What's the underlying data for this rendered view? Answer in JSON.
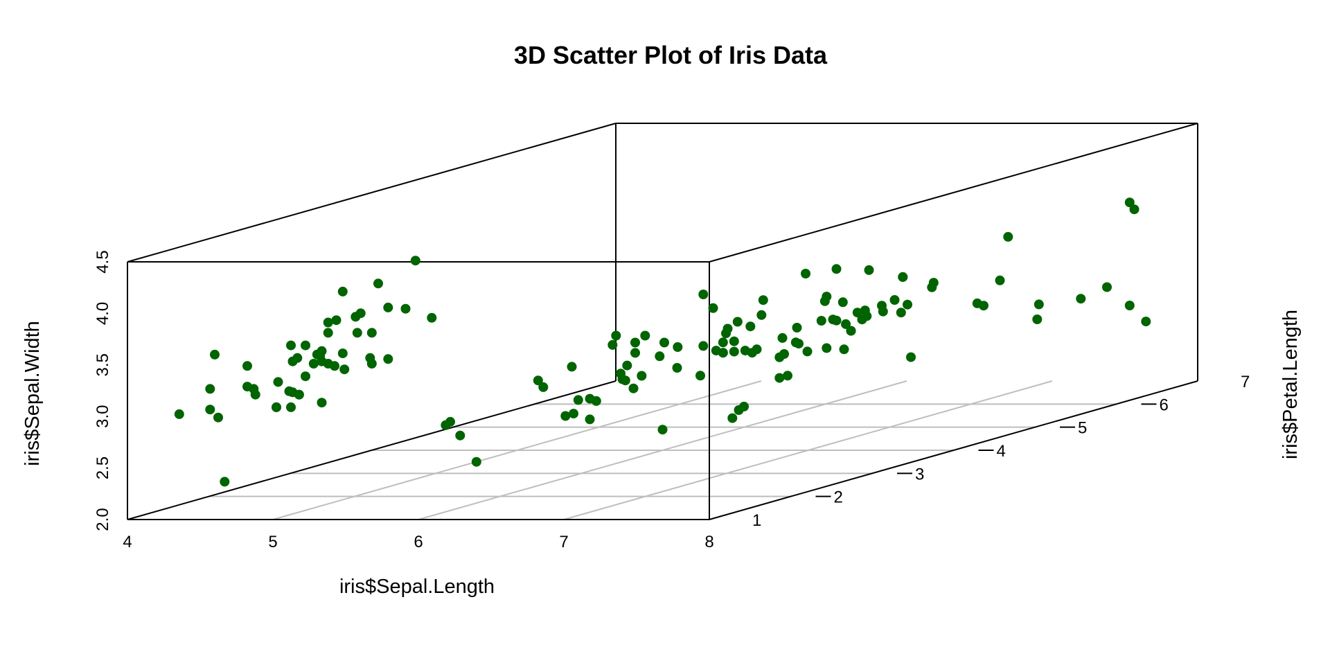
{
  "chart_data": {
    "type": "scatter",
    "title": "3D Scatter Plot of Iris Data",
    "xlabel": "iris$Sepal.Length",
    "ylabel": "iris$Petal.Length",
    "zlabel": "iris$Sepal.Width",
    "xlim": [
      4,
      8
    ],
    "ylim": [
      1,
      7
    ],
    "zlim": [
      2,
      4.5
    ],
    "x_ticks": [
      "4",
      "5",
      "6",
      "7",
      "8"
    ],
    "y_ticks": [
      "1",
      "2",
      "3",
      "4",
      "5",
      "6",
      "7"
    ],
    "z_ticks": [
      "2.0",
      "2.5",
      "3.0",
      "3.5",
      "4.0",
      "4.5"
    ],
    "grid": true,
    "point_color": "#006400",
    "points": [
      [
        5.1,
        1.4,
        3.5
      ],
      [
        4.9,
        1.4,
        3.0
      ],
      [
        4.7,
        1.3,
        3.2
      ],
      [
        4.6,
        1.5,
        3.1
      ],
      [
        5.0,
        1.4,
        3.6
      ],
      [
        5.4,
        1.7,
        3.9
      ],
      [
        4.6,
        1.4,
        3.4
      ],
      [
        5.0,
        1.5,
        3.4
      ],
      [
        4.4,
        1.4,
        2.9
      ],
      [
        4.9,
        1.5,
        3.1
      ],
      [
        5.4,
        1.5,
        3.7
      ],
      [
        4.8,
        1.6,
        3.4
      ],
      [
        4.8,
        1.4,
        3.0
      ],
      [
        4.3,
        1.1,
        3.0
      ],
      [
        5.8,
        1.2,
        4.0
      ],
      [
        5.7,
        1.5,
        4.4
      ],
      [
        5.4,
        1.3,
        3.9
      ],
      [
        5.1,
        1.4,
        3.5
      ],
      [
        5.7,
        1.7,
        3.8
      ],
      [
        5.1,
        1.5,
        3.8
      ],
      [
        5.4,
        1.7,
        3.4
      ],
      [
        5.1,
        1.5,
        3.7
      ],
      [
        4.6,
        1.0,
        3.6
      ],
      [
        5.1,
        1.7,
        3.3
      ],
      [
        4.8,
        1.9,
        3.4
      ],
      [
        5.0,
        1.6,
        3.0
      ],
      [
        5.0,
        1.6,
        3.4
      ],
      [
        5.2,
        1.5,
        3.5
      ],
      [
        5.2,
        1.4,
        3.4
      ],
      [
        4.7,
        1.6,
        3.2
      ],
      [
        4.8,
        1.6,
        3.1
      ],
      [
        5.4,
        1.5,
        3.4
      ],
      [
        5.2,
        1.5,
        4.1
      ],
      [
        5.5,
        1.4,
        4.2
      ],
      [
        4.9,
        1.5,
        3.1
      ],
      [
        5.0,
        1.2,
        3.2
      ],
      [
        5.5,
        1.3,
        3.5
      ],
      [
        4.9,
        1.4,
        3.6
      ],
      [
        4.4,
        1.3,
        3.0
      ],
      [
        5.1,
        1.5,
        3.4
      ],
      [
        5.0,
        1.3,
        3.5
      ],
      [
        4.5,
        1.3,
        2.3
      ],
      [
        4.4,
        1.3,
        3.2
      ],
      [
        5.0,
        1.6,
        3.5
      ],
      [
        5.1,
        1.9,
        3.8
      ],
      [
        4.8,
        1.4,
        3.0
      ],
      [
        5.1,
        1.6,
        3.8
      ],
      [
        4.6,
        1.4,
        3.2
      ],
      [
        5.3,
        1.5,
        3.7
      ],
      [
        5.0,
        1.4,
        3.3
      ],
      [
        7.0,
        4.7,
        3.2
      ],
      [
        6.4,
        4.5,
        3.2
      ],
      [
        6.9,
        4.9,
        3.1
      ],
      [
        5.5,
        4.0,
        2.3
      ],
      [
        6.5,
        4.6,
        2.8
      ],
      [
        5.7,
        4.5,
        2.8
      ],
      [
        6.3,
        4.7,
        3.3
      ],
      [
        4.9,
        3.3,
        2.4
      ],
      [
        6.6,
        4.6,
        2.9
      ],
      [
        5.2,
        3.9,
        2.7
      ],
      [
        5.0,
        3.5,
        2.0
      ],
      [
        5.9,
        4.2,
        3.0
      ],
      [
        6.0,
        4.0,
        2.2
      ],
      [
        6.1,
        4.7,
        2.9
      ],
      [
        5.6,
        3.6,
        2.9
      ],
      [
        6.7,
        4.4,
        3.1
      ],
      [
        5.6,
        4.5,
        3.0
      ],
      [
        5.8,
        4.1,
        2.7
      ],
      [
        6.2,
        4.5,
        2.2
      ],
      [
        5.6,
        3.9,
        2.5
      ],
      [
        5.9,
        4.8,
        3.2
      ],
      [
        6.1,
        4.0,
        2.8
      ],
      [
        6.3,
        4.9,
        2.5
      ],
      [
        6.1,
        4.7,
        2.8
      ],
      [
        6.4,
        4.3,
        2.9
      ],
      [
        6.6,
        4.4,
        3.0
      ],
      [
        6.8,
        4.8,
        2.8
      ],
      [
        6.7,
        5.0,
        3.0
      ],
      [
        6.0,
        4.5,
        2.9
      ],
      [
        5.7,
        3.5,
        2.6
      ],
      [
        5.5,
        3.8,
        2.4
      ],
      [
        5.5,
        3.7,
        2.4
      ],
      [
        5.8,
        3.9,
        2.7
      ],
      [
        6.0,
        5.1,
        2.7
      ],
      [
        5.4,
        4.5,
        3.0
      ],
      [
        6.0,
        4.5,
        3.4
      ],
      [
        6.7,
        4.7,
        3.1
      ],
      [
        6.3,
        4.4,
        2.3
      ],
      [
        5.6,
        4.1,
        3.0
      ],
      [
        5.5,
        4.0,
        2.5
      ],
      [
        5.5,
        4.4,
        2.6
      ],
      [
        6.1,
        4.6,
        3.0
      ],
      [
        5.8,
        4.0,
        2.6
      ],
      [
        5.0,
        3.3,
        2.3
      ],
      [
        5.6,
        4.2,
        2.7
      ],
      [
        5.7,
        4.2,
        3.0
      ],
      [
        5.7,
        4.2,
        2.9
      ],
      [
        6.2,
        4.3,
        2.9
      ],
      [
        5.1,
        3.0,
        2.5
      ],
      [
        5.7,
        4.1,
        2.8
      ],
      [
        6.3,
        6.0,
        3.3
      ],
      [
        5.8,
        5.1,
        2.7
      ],
      [
        7.1,
        5.9,
        3.0
      ],
      [
        6.3,
        5.6,
        2.9
      ],
      [
        6.5,
        5.8,
        3.0
      ],
      [
        7.6,
        6.6,
        3.0
      ],
      [
        4.9,
        4.5,
        2.5
      ],
      [
        7.3,
        6.3,
        2.9
      ],
      [
        6.7,
        5.8,
        2.5
      ],
      [
        7.2,
        6.1,
        3.6
      ],
      [
        6.5,
        5.1,
        3.2
      ],
      [
        6.4,
        5.3,
        2.7
      ],
      [
        6.8,
        5.5,
        3.0
      ],
      [
        5.7,
        5.0,
        2.5
      ],
      [
        5.8,
        5.1,
        2.8
      ],
      [
        6.4,
        5.3,
        3.2
      ],
      [
        6.5,
        5.5,
        3.0
      ],
      [
        7.7,
        6.7,
        3.8
      ],
      [
        7.7,
        6.9,
        2.6
      ],
      [
        6.0,
        5.0,
        2.2
      ],
      [
        6.9,
        5.7,
        3.2
      ],
      [
        5.6,
        4.9,
        2.8
      ],
      [
        7.7,
        6.7,
        2.8
      ],
      [
        6.3,
        4.9,
        2.7
      ],
      [
        6.7,
        5.7,
        3.3
      ],
      [
        7.2,
        6.0,
        3.2
      ],
      [
        6.2,
        4.8,
        2.8
      ],
      [
        6.1,
        4.9,
        3.0
      ],
      [
        6.4,
        5.6,
        2.8
      ],
      [
        7.2,
        5.8,
        3.0
      ],
      [
        7.4,
        6.1,
        2.8
      ],
      [
        7.9,
        6.4,
        3.8
      ],
      [
        6.4,
        5.6,
        2.8
      ],
      [
        6.3,
        5.1,
        2.8
      ],
      [
        6.1,
        5.6,
        2.6
      ],
      [
        7.7,
        6.1,
        3.0
      ],
      [
        6.3,
        5.6,
        3.4
      ],
      [
        6.4,
        5.5,
        3.1
      ],
      [
        6.0,
        4.8,
        3.0
      ],
      [
        6.9,
        5.4,
        3.1
      ],
      [
        6.7,
        5.6,
        3.1
      ],
      [
        6.9,
        5.1,
        3.1
      ],
      [
        5.8,
        5.1,
        2.7
      ],
      [
        6.8,
        5.9,
        3.2
      ],
      [
        6.7,
        5.7,
        3.3
      ],
      [
        6.7,
        5.2,
        3.0
      ],
      [
        6.3,
        5.0,
        2.5
      ],
      [
        6.5,
        5.2,
        3.0
      ],
      [
        6.2,
        5.4,
        3.4
      ],
      [
        5.9,
        5.1,
        3.0
      ]
    ]
  }
}
